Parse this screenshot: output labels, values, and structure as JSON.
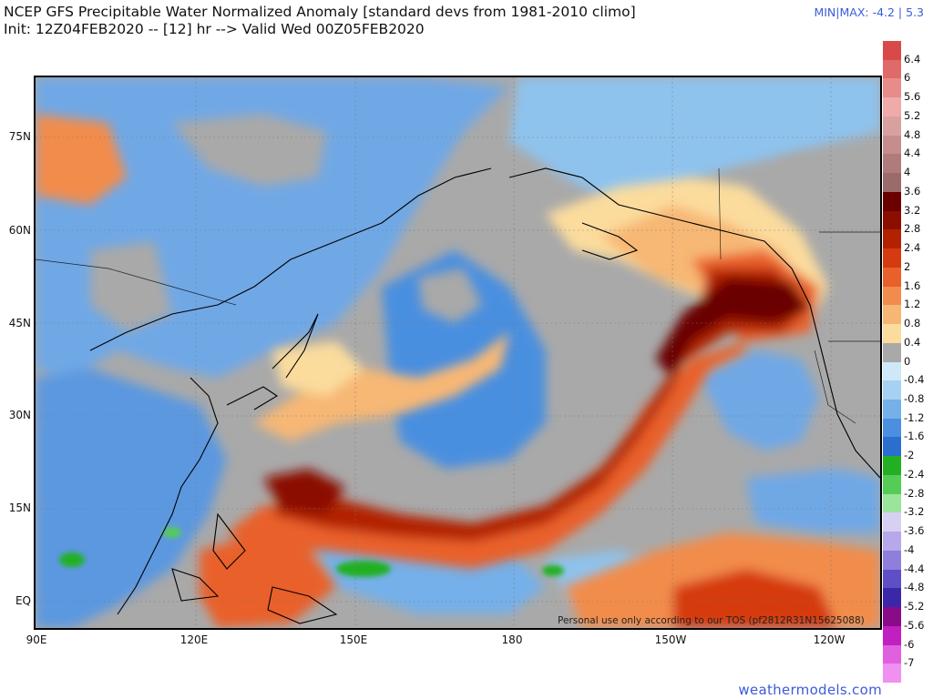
{
  "header": {
    "title": "NCEP GFS Precipitable Water Normalized Anomaly [standard devs from 1981-2010 climo]",
    "subtitle": "Init: 12Z04FEB2020 -- [12] hr --> Valid Wed 00Z05FEB2020",
    "minmax": "MIN|MAX: -4.2 | 5.3"
  },
  "map": {
    "lat_labels": [
      "75N",
      "60N",
      "45N",
      "30N",
      "15N",
      "EQ"
    ],
    "lon_labels": [
      "90E",
      "120E",
      "150E",
      "180",
      "150W",
      "120W"
    ],
    "credit": "Personal use only according to our TOS (pf2812R31N15625088)"
  },
  "colorbar": {
    "labels": [
      "6.4",
      "6",
      "5.6",
      "5.2",
      "4.8",
      "4.4",
      "4",
      "3.6",
      "3.2",
      "2.8",
      "2.4",
      "2",
      "1.6",
      "1.2",
      "0.8",
      "0.4",
      "0",
      "-0.4",
      "-0.8",
      "-1.2",
      "-1.6",
      "-2",
      "-2.4",
      "-2.8",
      "-3.2",
      "-3.6",
      "-4",
      "-4.4",
      "-4.8",
      "-5.2",
      "-5.6",
      "-6",
      "-7"
    ],
    "colors": [
      "#d84a4a",
      "#e06a6a",
      "#e88b8b",
      "#efaaaa",
      "#d9a0a0",
      "#c58d8d",
      "#b07b7b",
      "#9b6a6a",
      "#6b0000",
      "#8b0e00",
      "#b22200",
      "#d63a10",
      "#e9602a",
      "#f28c4c",
      "#f7b774",
      "#fbdc9d",
      "#a9a9a9",
      "#cfe8f7",
      "#a6d1f2",
      "#74b0ea",
      "#4a8fe0",
      "#2a6fd0",
      "#22b022",
      "#55cc55",
      "#9ae59a",
      "#d8d0f2",
      "#b6a8ea",
      "#8e7fdc",
      "#5e4fc6",
      "#3a28a8",
      "#8a0a8a",
      "#c020c0",
      "#e060e0",
      "#f090f0"
    ]
  },
  "footer": {
    "site": "weathermodels.com"
  }
}
